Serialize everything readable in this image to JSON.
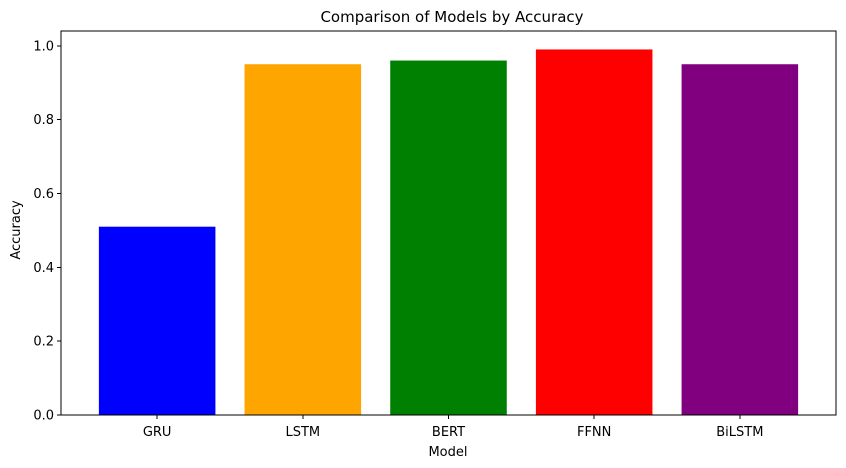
{
  "chart_data": {
    "type": "bar",
    "title": "Comparison of Models by Accuracy",
    "xlabel": "Model",
    "ylabel": "Accuracy",
    "categories": [
      "GRU",
      "LSTM",
      "BERT",
      "FFNN",
      "BiLSTM"
    ],
    "values": [
      0.51,
      0.95,
      0.96,
      0.99,
      0.95
    ],
    "colors": [
      "#0000ff",
      "#ffa500",
      "#008000",
      "#ff0000",
      "#800080"
    ],
    "ylim": [
      0,
      1.04
    ],
    "yticks": [
      0.0,
      0.2,
      0.4,
      0.6,
      0.8,
      1.0
    ],
    "ytick_labels": [
      "0.0",
      "0.2",
      "0.4",
      "0.6",
      "0.8",
      "1.0"
    ],
    "grid": false,
    "legend": "none"
  }
}
